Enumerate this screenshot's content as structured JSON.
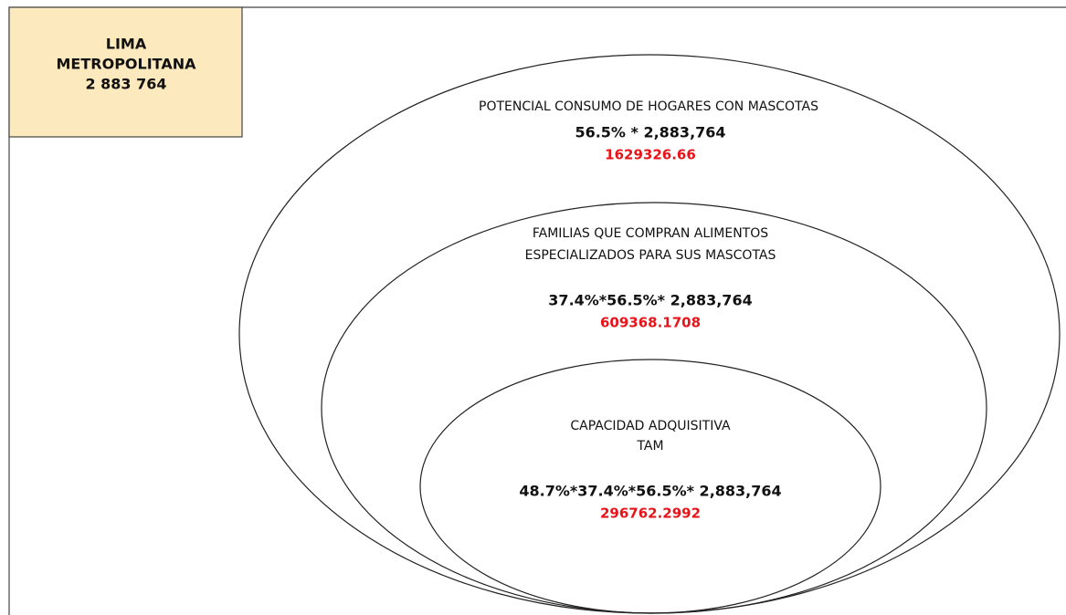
{
  "header": {
    "lines": [
      "LIMA",
      "METROPOLITANA",
      "2 883 764"
    ]
  },
  "levels": [
    {
      "label": [
        "POTENCIAL CONSUMO DE HOGARES CON MASCOTAS"
      ],
      "formula": "56.5% * 2,883,764",
      "result": "1629326.66"
    },
    {
      "label": [
        "FAMILIAS QUE COMPRAN ALIMENTOS",
        "ESPECIALIZADOS PARA SUS MASCOTAS"
      ],
      "formula": "37.4%*56.5%* 2,883,764",
      "result": "609368.1708"
    },
    {
      "label": [
        "CAPACIDAD ADQUISITIVA",
        "TAM"
      ],
      "formula": "48.7%*37.4%*56.5%* 2,883,764",
      "result": "296762.2992"
    }
  ]
}
